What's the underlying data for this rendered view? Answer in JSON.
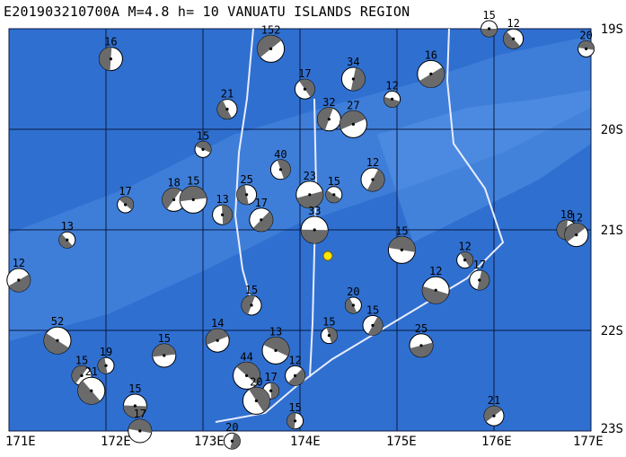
{
  "title": "E201903210700A  M=4.8  h= 10 VANUATU ISLANDS REGION",
  "lat_labels": [
    "19S",
    "20S",
    "21S",
    "22S",
    "23S"
  ],
  "lon_labels": [
    "171E",
    "172E",
    "173E",
    "174E",
    "175E",
    "176E",
    "177E"
  ],
  "colors": {
    "ocean": "#2f6fd0",
    "ocean_shallow": "#4a8ae0",
    "grid": "#0a1a40",
    "track": "#ffffff",
    "epicenter": "#ffe800"
  },
  "mechanisms": [
    {
      "label": "15",
      "lon": 175.95,
      "lat": -19.0
    },
    {
      "label": "12",
      "lon": 176.2,
      "lat": -19.1
    },
    {
      "label": "16",
      "lon": 172.05,
      "lat": -19.3
    },
    {
      "label": "152",
      "lon": 173.7,
      "lat": -19.2
    },
    {
      "label": "20",
      "lon": 176.95,
      "lat": -19.2
    },
    {
      "label": "17",
      "lon": 174.05,
      "lat": -19.6
    },
    {
      "label": "34",
      "lon": 174.55,
      "lat": -19.5
    },
    {
      "label": "16",
      "lon": 175.35,
      "lat": -19.45
    },
    {
      "label": "12",
      "lon": 174.95,
      "lat": -19.7
    },
    {
      "label": "21",
      "lon": 173.25,
      "lat": -19.8
    },
    {
      "label": "32",
      "lon": 174.3,
      "lat": -19.9
    },
    {
      "label": "27",
      "lon": 174.55,
      "lat": -19.95
    },
    {
      "label": "15",
      "lon": 173.0,
      "lat": -20.2
    },
    {
      "label": "40",
      "lon": 173.8,
      "lat": -20.4
    },
    {
      "label": "12",
      "lon": 174.75,
      "lat": -20.5
    },
    {
      "label": "23",
      "lon": 174.1,
      "lat": -20.65
    },
    {
      "label": "15",
      "lon": 174.35,
      "lat": -20.65
    },
    {
      "label": "25",
      "lon": 173.45,
      "lat": -20.65
    },
    {
      "label": "18",
      "lon": 172.7,
      "lat": -20.7
    },
    {
      "label": "15",
      "lon": 172.9,
      "lat": -20.7
    },
    {
      "label": "17",
      "lon": 172.2,
      "lat": -20.75
    },
    {
      "label": "13",
      "lon": 173.2,
      "lat": -20.85
    },
    {
      "label": "17",
      "lon": 173.6,
      "lat": -20.9
    },
    {
      "label": "33",
      "lon": 174.15,
      "lat": -21.0
    },
    {
      "label": "13",
      "lon": 171.6,
      "lat": -21.1
    },
    {
      "label": "18",
      "lon": 176.75,
      "lat": -21.0
    },
    {
      "label": "12",
      "lon": 176.85,
      "lat": -21.05
    },
    {
      "label": "15",
      "lon": 175.05,
      "lat": -21.2
    },
    {
      "label": "12",
      "lon": 175.7,
      "lat": -21.3
    },
    {
      "label": "17",
      "lon": 175.85,
      "lat": -21.5
    },
    {
      "label": "12",
      "lon": 171.1,
      "lat": -21.5
    },
    {
      "label": "12",
      "lon": 175.4,
      "lat": -21.6
    },
    {
      "label": "20",
      "lon": 174.55,
      "lat": -21.75
    },
    {
      "label": "15",
      "lon": 173.5,
      "lat": -21.75
    },
    {
      "label": "14",
      "lon": 173.15,
      "lat": -22.1
    },
    {
      "label": "13",
      "lon": 173.75,
      "lat": -22.2
    },
    {
      "label": "15",
      "lon": 174.3,
      "lat": -22.05
    },
    {
      "label": "15",
      "lon": 174.75,
      "lat": -21.95
    },
    {
      "label": "25",
      "lon": 175.25,
      "lat": -22.15
    },
    {
      "label": "52",
      "lon": 171.5,
      "lat": -22.1
    },
    {
      "label": "19",
      "lon": 172.0,
      "lat": -22.35
    },
    {
      "label": "15",
      "lon": 171.75,
      "lat": -22.45
    },
    {
      "label": "15",
      "lon": 172.6,
      "lat": -22.25
    },
    {
      "label": "44",
      "lon": 173.45,
      "lat": -22.45
    },
    {
      "label": "17",
      "lon": 173.7,
      "lat": -22.6
    },
    {
      "label": "12",
      "lon": 173.95,
      "lat": -22.45
    },
    {
      "label": "15",
      "lon": 172.3,
      "lat": -22.75
    },
    {
      "label": "21",
      "lon": 171.85,
      "lat": -22.6
    },
    {
      "label": "15",
      "lon": 173.95,
      "lat": -22.9
    },
    {
      "label": "21",
      "lon": 176.0,
      "lat": -22.85
    },
    {
      "label": "17",
      "lon": 172.35,
      "lat": -23.0
    },
    {
      "label": "20",
      "lon": 173.55,
      "lat": -22.7
    },
    {
      "label": "20",
      "lon": 173.3,
      "lat": -23.1
    }
  ]
}
